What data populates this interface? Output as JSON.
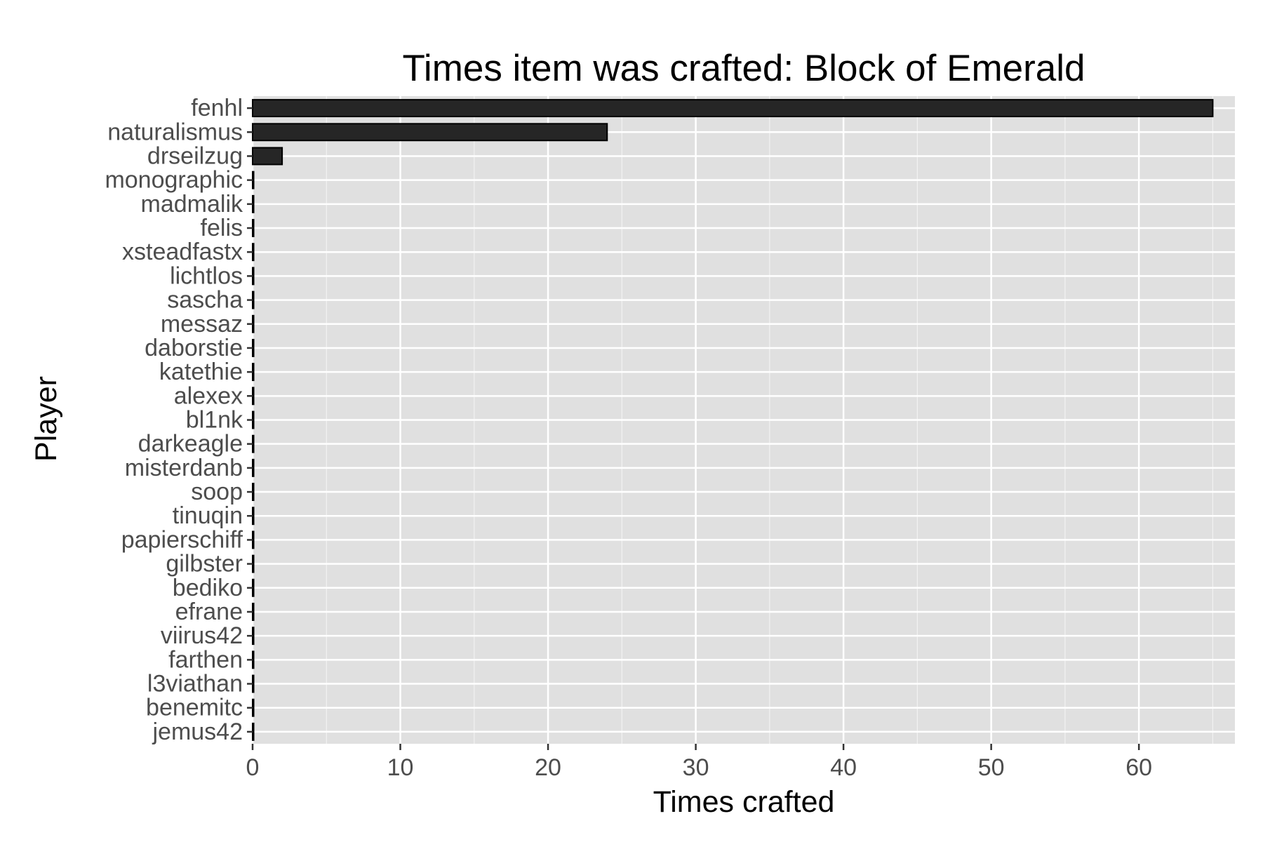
{
  "chart_data": {
    "type": "bar",
    "orientation": "horizontal",
    "title": "Times item was crafted: Block of Emerald",
    "xlabel": "Times crafted",
    "ylabel": "Player",
    "categories": [
      "fenhl",
      "naturalismus",
      "drseilzug",
      "monographic",
      "madmalik",
      "felis",
      "xsteadfastx",
      "lichtlos",
      "sascha",
      "messaz",
      "daborstie",
      "katethie",
      "alexex",
      "bl1nk",
      "darkeagle",
      "misterdanb",
      "soop",
      "tinuqin",
      "papierschiff",
      "gilbster",
      "bediko",
      "efrane",
      "viirus42",
      "farthen",
      "l3viathan",
      "benemitc",
      "jemus42"
    ],
    "values": [
      65,
      24,
      2,
      0,
      0,
      0,
      0,
      0,
      0,
      0,
      0,
      0,
      0,
      0,
      0,
      0,
      0,
      0,
      0,
      0,
      0,
      0,
      0,
      0,
      0,
      0,
      0
    ],
    "xlim": [
      0,
      66.5
    ],
    "xticks": [
      0,
      10,
      20,
      30,
      40,
      50,
      60
    ],
    "grid": true,
    "legend": "none",
    "colors": {
      "panel": "#e0e0e0",
      "bar": "#262626",
      "grid": "#ffffff"
    }
  }
}
